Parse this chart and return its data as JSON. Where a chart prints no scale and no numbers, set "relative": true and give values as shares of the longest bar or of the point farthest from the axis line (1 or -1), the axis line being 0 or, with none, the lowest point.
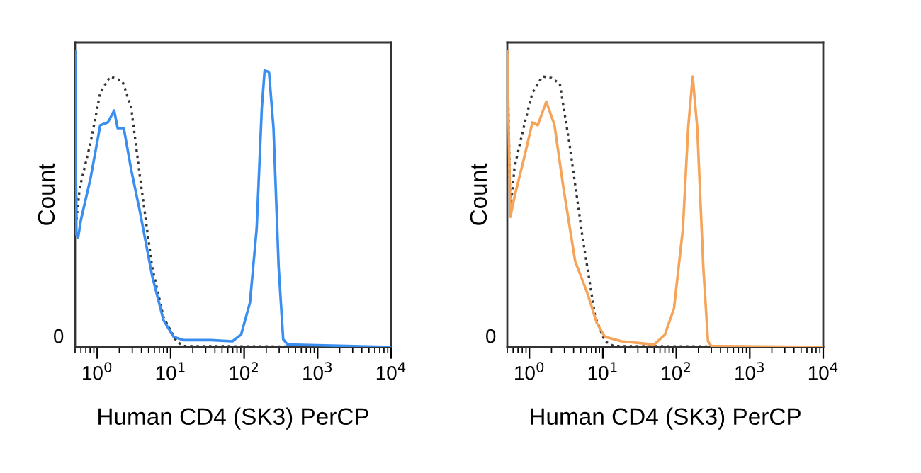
{
  "chart_data": [
    {
      "type": "line",
      "relative": true,
      "log": "x",
      "xlabel": "Human CD4 (SK3) PerCP",
      "ylabel": "Count",
      "xlim": [
        0.5,
        10000
      ],
      "xticks": [
        {
          "value": 1,
          "label": "10$^{0}$"
        },
        {
          "value": 10,
          "label": "10$^{1}$"
        },
        {
          "value": 100,
          "label": "10$^{2}$"
        },
        {
          "value": 1000,
          "label": "10$^{3}$"
        },
        {
          "value": 10000,
          "label": "10$^{4}$"
        }
      ],
      "annotations": [
        "0"
      ],
      "series": [
        {
          "color": "#333333",
          "line_style": "dotted",
          "x": [
            0.5,
            0.52,
            0.58,
            0.81,
            1.1,
            1.5,
            2.2,
            2.9,
            3.8,
            5.6,
            8,
            12,
            15,
            10000
          ],
          "values": [
            1.0,
            0.43,
            0.54,
            0.69,
            0.86,
            0.915,
            0.9,
            0.81,
            0.58,
            0.27,
            0.1,
            0.019,
            0.003,
            0
          ]
        },
        {
          "color": "#3a8ef0",
          "line_style": "solid",
          "x": [
            0.5,
            0.52,
            0.55,
            0.6,
            0.81,
            1.1,
            1.4,
            1.7,
            1.9,
            2.3,
            2.9,
            3.8,
            5.6,
            8,
            11,
            15,
            35,
            69,
            91,
            120,
            148,
            174,
            190,
            218,
            251,
            295,
            340,
            390,
            10000
          ],
          "values": [
            1.0,
            0.38,
            0.37,
            0.43,
            0.57,
            0.75,
            0.76,
            0.8,
            0.74,
            0.74,
            0.6,
            0.46,
            0.24,
            0.09,
            0.034,
            0.023,
            0.023,
            0.019,
            0.042,
            0.15,
            0.4,
            0.81,
            0.935,
            0.93,
            0.74,
            0.27,
            0.026,
            0.008,
            0
          ]
        }
      ]
    },
    {
      "type": "line",
      "relative": true,
      "log": "x",
      "xlabel": "Human CD4 (SK3) PerCP",
      "ylabel": "Count",
      "xlim": [
        0.5,
        10000
      ],
      "xticks": [
        {
          "value": 1,
          "label": "10$^{0}$"
        },
        {
          "value": 10,
          "label": "10$^{1}$"
        },
        {
          "value": 100,
          "label": "10$^{2}$"
        },
        {
          "value": 1000,
          "label": "10$^{3}$"
        },
        {
          "value": 10000,
          "label": "10$^{4}$"
        }
      ],
      "annotations": [
        "0"
      ],
      "series": [
        {
          "color": "#333333",
          "line_style": "dotted",
          "x": [
            0.5,
            0.55,
            0.63,
            0.83,
            1.1,
            1.5,
            2.0,
            2.6,
            3.5,
            5.3,
            7.9,
            10.7,
            14,
            10000
          ],
          "values": [
            1.0,
            0.46,
            0.61,
            0.74,
            0.86,
            0.915,
            0.91,
            0.89,
            0.69,
            0.37,
            0.1,
            0.019,
            0.003,
            0
          ]
        },
        {
          "color": "#f5a45a",
          "line_style": "solid",
          "x": [
            0.5,
            0.55,
            0.63,
            0.83,
            1.1,
            1.3,
            1.7,
            2.2,
            2.9,
            4.2,
            6.2,
            8.3,
            10.7,
            18,
            38,
            50,
            70,
            93,
            123,
            145,
            167,
            193,
            233,
            270,
            300,
            10000
          ],
          "values": [
            1.0,
            0.44,
            0.51,
            0.63,
            0.76,
            0.75,
            0.83,
            0.75,
            0.54,
            0.29,
            0.18,
            0.08,
            0.034,
            0.019,
            0.011,
            0.008,
            0.042,
            0.13,
            0.4,
            0.74,
            0.915,
            0.74,
            0.27,
            0.019,
            0.003,
            0
          ]
        }
      ]
    }
  ]
}
